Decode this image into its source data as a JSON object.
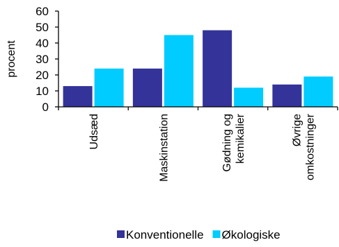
{
  "chart_data": {
    "type": "bar",
    "title": "",
    "xlabel": "",
    "ylabel": "procent",
    "ylim": [
      0,
      60
    ],
    "yticks": [
      0,
      10,
      20,
      30,
      40,
      50,
      60
    ],
    "grid": false,
    "legend_position": "bottom",
    "categories": [
      [
        "Udsæd"
      ],
      [
        "Maskinstation"
      ],
      [
        "Gødning og",
        "kemikalier"
      ],
      [
        "Øvrige",
        "omkostninger"
      ]
    ],
    "series": [
      {
        "name": "Konventionelle",
        "color": "#333399",
        "values": [
          13,
          24,
          48,
          14
        ]
      },
      {
        "name": "Økologiske",
        "color": "#00CCFF",
        "values": [
          24,
          45,
          12,
          19
        ]
      }
    ]
  }
}
